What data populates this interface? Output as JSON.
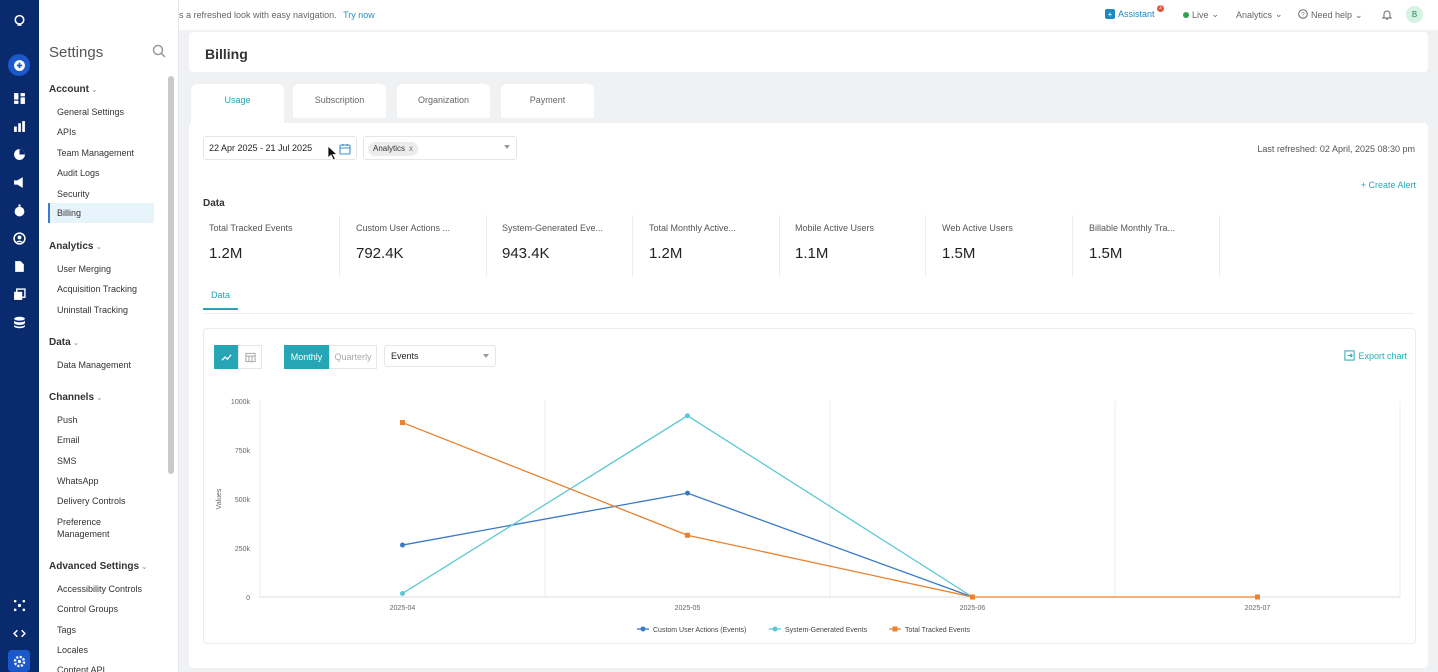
{
  "banner": {
    "text": "s a refreshed look with easy navigation.",
    "link": "Try now"
  },
  "topbar": {
    "assistant": "Assistant",
    "assistant_badge": "2",
    "live": "Live",
    "analytics": "Analytics",
    "help": "Need help",
    "avatar": "B"
  },
  "sidebar": {
    "title": "Settings",
    "groups": [
      {
        "label": "Account",
        "items": [
          "General Settings",
          "APIs",
          "Team Management",
          "Audit Logs",
          "Security",
          "Billing"
        ]
      },
      {
        "label": "Analytics",
        "items": [
          "User Merging",
          "Acquisition Tracking",
          "Uninstall Tracking"
        ]
      },
      {
        "label": "Data",
        "items": [
          "Data Management"
        ]
      },
      {
        "label": "Channels",
        "items": [
          "Push",
          "Email",
          "SMS",
          "WhatsApp",
          "Delivery Controls",
          "Preference",
          "Management"
        ]
      },
      {
        "label": "Advanced Settings",
        "items": [
          "Accessibility Controls",
          "Control Groups",
          "Tags",
          "Locales",
          "Content API"
        ]
      }
    ],
    "active_item": "Billing"
  },
  "page": {
    "title": "Billing",
    "tabs": [
      "Usage",
      "Subscription",
      "Organization",
      "Payment"
    ],
    "active_tab": "Usage"
  },
  "filters": {
    "date_range": "22 Apr 2025 - 21 Jul 2025",
    "chip": "Analytics",
    "chip_close": "x",
    "last_refreshed": "Last refreshed: 02 April, 2025 08:30 pm",
    "create_alert": "Create Alert"
  },
  "data_heading": "Data",
  "metrics": [
    {
      "label": "Total Tracked Events",
      "value": "1.2M"
    },
    {
      "label": "Custom User Actions ...",
      "value": "792.4K"
    },
    {
      "label": "System-Generated Eve...",
      "value": "943.4K"
    },
    {
      "label": "Total Monthly Active...",
      "value": "1.2M"
    },
    {
      "label": "Mobile Active Users",
      "value": "1.1M"
    },
    {
      "label": "Web Active Users",
      "value": "1.5M"
    },
    {
      "label": "Billable Monthly Tra...",
      "value": "1.5M"
    }
  ],
  "subtab": "Data",
  "chart_controls": {
    "monthly": "Monthly",
    "quarterly": "Quarterly",
    "event_select": "Events",
    "export": "Export chart"
  },
  "chart_data": {
    "type": "line",
    "x": [
      "2025-04",
      "2025-05",
      "2025-06",
      "2025-07"
    ],
    "ylabel": "Values",
    "ylim": [
      0,
      1000000
    ],
    "yticks": [
      0,
      250000,
      500000,
      750000,
      1000000
    ],
    "ytick_labels": [
      "0",
      "250k",
      "500k",
      "750k",
      "1000k"
    ],
    "grid": "vertical",
    "legend": "bottom",
    "series": [
      {
        "name": "Custom User Actions (Events)",
        "color": "#3a78c8",
        "marker": "circle",
        "values": [
          265000,
          530000,
          0,
          null
        ]
      },
      {
        "name": "System-Generated Events",
        "color": "#5cc8d0",
        "marker": "circle",
        "values": [
          18000,
          925000,
          0,
          null
        ]
      },
      {
        "name": "Total Tracked Events",
        "color": "#e9812f",
        "marker": "square",
        "values": [
          890000,
          315000,
          0,
          0
        ]
      }
    ]
  }
}
